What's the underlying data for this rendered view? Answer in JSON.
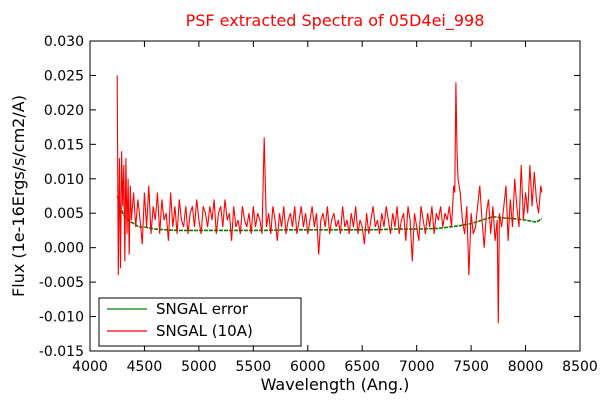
{
  "chart_data": {
    "type": "line",
    "title": "PSF extracted Spectra of 05D4ei_998",
    "title_color": "#ff0000",
    "xlabel": "Wavelength (Ang.)",
    "ylabel": "Flux (1e-16Ergs/s/cm2/A)",
    "xlim": [
      4000,
      8500
    ],
    "ylim": [
      -0.015,
      0.03
    ],
    "xticks": [
      "4000",
      "4500",
      "5000",
      "5500",
      "6000",
      "6500",
      "7000",
      "7500",
      "8000",
      "8500"
    ],
    "yticks": [
      "0.030",
      "0.025",
      "0.020",
      "0.015",
      "0.010",
      "0.005",
      "0.000",
      "-0.005",
      "-0.010",
      "-0.015"
    ],
    "grid": false,
    "legend_position": "lower-left",
    "series": [
      {
        "name": "SNGAL error",
        "color": "#008000",
        "x": [
          4250,
          4280,
          4300,
          4320,
          4350,
          4400,
          4450,
          4500,
          4600,
          4700,
          4800,
          4900,
          5000,
          5200,
          5400,
          5600,
          5800,
          6000,
          6200,
          6400,
          6600,
          6800,
          7000,
          7200,
          7300,
          7400,
          7500,
          7600,
          7700,
          7800,
          7900,
          8000,
          8100,
          8150
        ],
        "y": [
          0.0075,
          0.006,
          0.005,
          0.0045,
          0.004,
          0.0035,
          0.003,
          0.003,
          0.0027,
          0.0026,
          0.0025,
          0.0025,
          0.0025,
          0.0025,
          0.0025,
          0.0025,
          0.0026,
          0.0026,
          0.0026,
          0.0026,
          0.0026,
          0.0027,
          0.0027,
          0.0028,
          0.003,
          0.0032,
          0.0035,
          0.004,
          0.0045,
          0.0043,
          0.0042,
          0.004,
          0.0037,
          0.0042
        ]
      },
      {
        "name": "SNGAL (10A)",
        "color": "#ff0000",
        "x": [
          4250,
          4260,
          4270,
          4280,
          4290,
          4300,
          4310,
          4320,
          4330,
          4340,
          4350,
          4360,
          4370,
          4380,
          4400,
          4420,
          4440,
          4460,
          4480,
          4500,
          4520,
          4540,
          4560,
          4580,
          4600,
          4620,
          4640,
          4660,
          4680,
          4700,
          4720,
          4740,
          4760,
          4780,
          4800,
          4820,
          4840,
          4860,
          4880,
          4900,
          4920,
          4940,
          4960,
          4980,
          5000,
          5020,
          5040,
          5060,
          5080,
          5100,
          5120,
          5140,
          5160,
          5180,
          5200,
          5220,
          5240,
          5260,
          5280,
          5300,
          5320,
          5340,
          5360,
          5380,
          5400,
          5420,
          5440,
          5460,
          5480,
          5500,
          5520,
          5540,
          5560,
          5580,
          5600,
          5620,
          5640,
          5660,
          5680,
          5700,
          5720,
          5740,
          5760,
          5780,
          5800,
          5820,
          5840,
          5860,
          5880,
          5900,
          5920,
          5940,
          5960,
          5980,
          6000,
          6020,
          6040,
          6060,
          6080,
          6100,
          6120,
          6140,
          6160,
          6180,
          6200,
          6220,
          6240,
          6260,
          6280,
          6300,
          6320,
          6340,
          6360,
          6380,
          6400,
          6420,
          6440,
          6460,
          6480,
          6500,
          6520,
          6540,
          6560,
          6580,
          6600,
          6620,
          6640,
          6660,
          6680,
          6700,
          6720,
          6740,
          6760,
          6780,
          6800,
          6820,
          6840,
          6860,
          6880,
          6900,
          6920,
          6940,
          6960,
          6980,
          7000,
          7020,
          7040,
          7060,
          7080,
          7100,
          7120,
          7140,
          7160,
          7180,
          7200,
          7220,
          7240,
          7260,
          7280,
          7300,
          7320,
          7340,
          7350,
          7360,
          7370,
          7380,
          7400,
          7420,
          7440,
          7460,
          7480,
          7500,
          7520,
          7540,
          7560,
          7580,
          7600,
          7620,
          7640,
          7660,
          7680,
          7700,
          7720,
          7740,
          7750,
          7760,
          7780,
          7800,
          7820,
          7840,
          7860,
          7880,
          7900,
          7920,
          7940,
          7960,
          7980,
          8000,
          8020,
          8040,
          8060,
          8080,
          8100,
          8120,
          8140,
          8150
        ],
        "y": [
          0.025,
          -0.004,
          0.013,
          -0.003,
          0.014,
          0.006,
          0.012,
          -0.002,
          0.013,
          0.002,
          0.01,
          -0.001,
          0.009,
          0.004,
          0.008,
          0.003,
          0.007,
          0.004,
          0.0005,
          0.008,
          0.003,
          0.009,
          0.002,
          0.006,
          0.004,
          0.008,
          0.002,
          0.007,
          0.004,
          0.005,
          0.001,
          0.008,
          0.003,
          0.006,
          0.002,
          0.007,
          0.004,
          0.003,
          0.006,
          0.002,
          0.005,
          0.006,
          0.003,
          0.007,
          0.004,
          0.002,
          0.006,
          0.005,
          0.003,
          0.006,
          0.004,
          0.007,
          0.002,
          0.005,
          0.006,
          0.003,
          0.007,
          0.004,
          0.005,
          0.001,
          0.006,
          0.003,
          0.004,
          0.002,
          0.006,
          0.004,
          0.003,
          0.005,
          0.002,
          0.006,
          0.003,
          0.005,
          0.004,
          0.002,
          0.016,
          0.003,
          0.005,
          0.002,
          0.006,
          0.004,
          0.001,
          0.005,
          0.003,
          0.006,
          0.002,
          0.004,
          0.005,
          0.003,
          0.006,
          0.002,
          0.004,
          0.006,
          0.003,
          0.005,
          0.002,
          0.004,
          0.006,
          0.003,
          0.005,
          -0.001,
          0.004,
          0.005,
          0.003,
          0.006,
          0.002,
          0.004,
          0.005,
          0.003,
          0.004,
          0.002,
          0.006,
          0.003,
          0.004,
          0.002,
          0.005,
          0.003,
          0.006,
          0.002,
          0.004,
          0.003,
          0.0005,
          0.005,
          0.002,
          0.004,
          0.006,
          0.003,
          0.004,
          0.002,
          0.005,
          0.003,
          0.006,
          0.004,
          0.002,
          0.005,
          0.003,
          0.006,
          0.002,
          0.004,
          0.005,
          0.001,
          0.006,
          0.004,
          -0.002,
          0.005,
          0.003,
          0.001,
          0.006,
          0.004,
          0.002,
          0.005,
          0.003,
          0.006,
          0.002,
          0.005,
          0.004,
          0.006,
          0.003,
          0.005,
          0.004,
          0.006,
          0.003,
          0.009,
          0.008,
          0.024,
          0.014,
          0.01,
          0.008,
          0.004,
          0.002,
          0.006,
          -0.004,
          0.005,
          0.002,
          0.003,
          0.006,
          0.009,
          0.004,
          0.0,
          0.005,
          0.007,
          0.002,
          0.006,
          0.001,
          0.004,
          -0.011,
          0.005,
          0.003,
          0.006,
          0.009,
          0.001,
          0.007,
          0.003,
          0.01,
          0.006,
          0.003,
          0.012,
          0.004,
          0.008,
          0.005,
          0.012,
          0.006,
          0.011,
          0.007,
          0.005,
          0.009,
          0.008
        ]
      }
    ]
  }
}
